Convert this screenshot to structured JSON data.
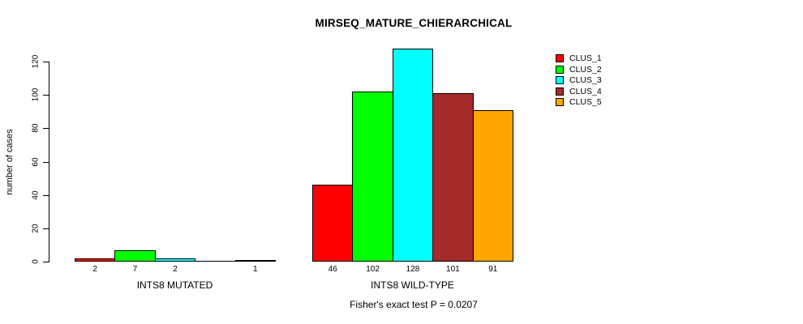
{
  "chart_data": {
    "type": "bar",
    "title": "MIRSEQ_MATURE_CHIERARCHICAL",
    "ylabel": "number of cases",
    "xlabel": "",
    "ylim": [
      0,
      128
    ],
    "yticks": [
      0,
      20,
      40,
      60,
      80,
      100,
      120
    ],
    "grid": false,
    "legend_position": "topright",
    "series": [
      {
        "name": "CLUS_1",
        "color": "#FF0000"
      },
      {
        "name": "CLUS_2",
        "color": "#00FF00"
      },
      {
        "name": "CLUS_3",
        "color": "#00FFFF"
      },
      {
        "name": "CLUS_4",
        "color": "#A52A2A"
      },
      {
        "name": "CLUS_5",
        "color": "#FFA500"
      }
    ],
    "groups": [
      {
        "label": "INTS8 MUTATED",
        "values": [
          2,
          7,
          2,
          0,
          1
        ],
        "bar_labels": [
          "2",
          "7",
          "2",
          "",
          "1"
        ]
      },
      {
        "label": "INTS8 WILD-TYPE",
        "values": [
          46,
          102,
          128,
          101,
          91
        ],
        "bar_labels": [
          "46",
          "102",
          "128",
          "101",
          "91"
        ]
      }
    ],
    "annotation": "Fisher's exact test P = 0.0207"
  }
}
